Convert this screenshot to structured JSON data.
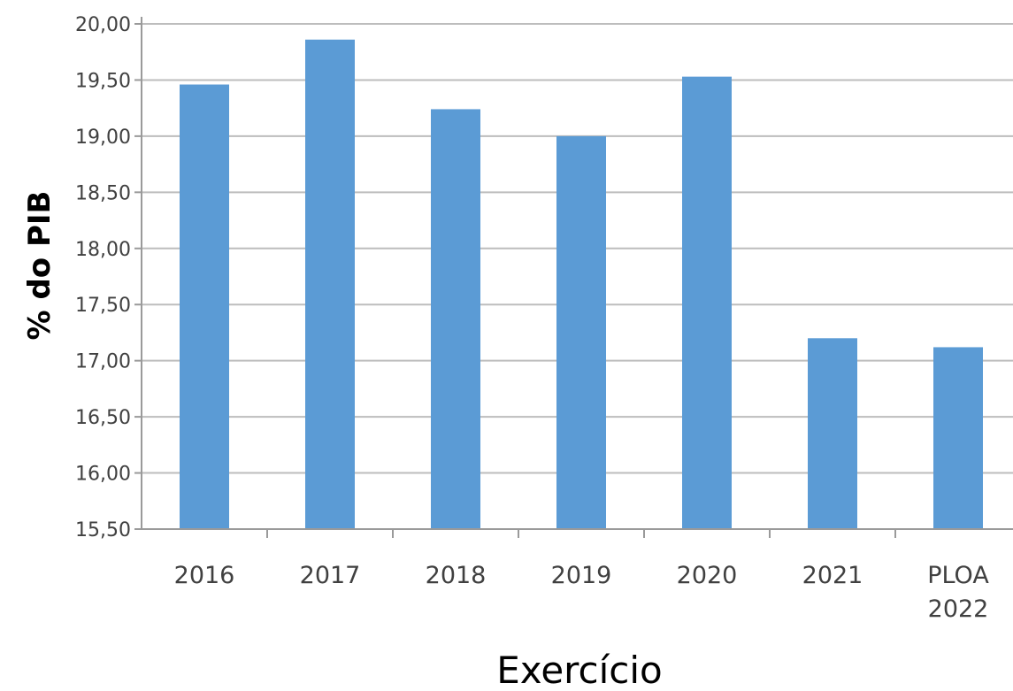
{
  "chart_data": {
    "type": "bar",
    "categories": [
      "2016",
      "2017",
      "2018",
      "2019",
      "2020",
      "2021",
      "PLOA 2022"
    ],
    "category_lines": [
      [
        "2016"
      ],
      [
        "2017"
      ],
      [
        "2018"
      ],
      [
        "2019"
      ],
      [
        "2020"
      ],
      [
        "2021"
      ],
      [
        "PLOA",
        "2022"
      ]
    ],
    "values": [
      19.46,
      19.86,
      19.24,
      19.0,
      19.53,
      17.2,
      17.12
    ],
    "ylim": [
      15.5,
      20.0
    ],
    "y_ticks": [
      15.5,
      16.0,
      16.5,
      17.0,
      17.5,
      18.0,
      18.5,
      19.0,
      19.5,
      20.0
    ],
    "y_tick_labels": [
      "15,50",
      "16,00",
      "16,50",
      "17,00",
      "17,50",
      "18,00",
      "18,50",
      "19,00",
      "19,50",
      "20,00"
    ],
    "xlabel": "Exercício",
    "ylabel": "% do PIB",
    "grid": true,
    "bar_color": "#5b9bd5",
    "grid_color": "#bdbdbd"
  }
}
